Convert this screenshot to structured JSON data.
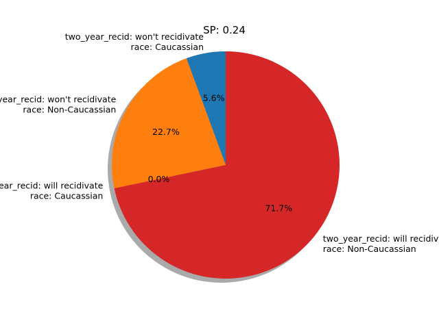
{
  "chart_data": {
    "type": "pie",
    "title": "SP: 0.24",
    "start_angle_deg": 90,
    "direction": "counterclockwise",
    "shadow": true,
    "slices": [
      {
        "label_lines": [
          "two_year_recid: won't recidivate",
          "race: Caucassian"
        ],
        "value": 5.6,
        "pct_label": "5.6%",
        "color": "#1f77b4"
      },
      {
        "label_lines": [
          "two_year_recid: won't recidivate",
          "race: Non-Caucassian"
        ],
        "value": 22.7,
        "pct_label": "22.7%",
        "color": "#ff7f0e"
      },
      {
        "label_lines": [
          "two_year_recid: will recidivate",
          "race: Caucassian"
        ],
        "value": 0.0,
        "pct_label": "0.0%",
        "color": "#2ca02c"
      },
      {
        "label_lines": [
          "two_year_recid: will recidivate",
          "race: Non-Caucassian"
        ],
        "value": 71.7,
        "pct_label": "71.7%",
        "color": "#d62728"
      }
    ]
  }
}
